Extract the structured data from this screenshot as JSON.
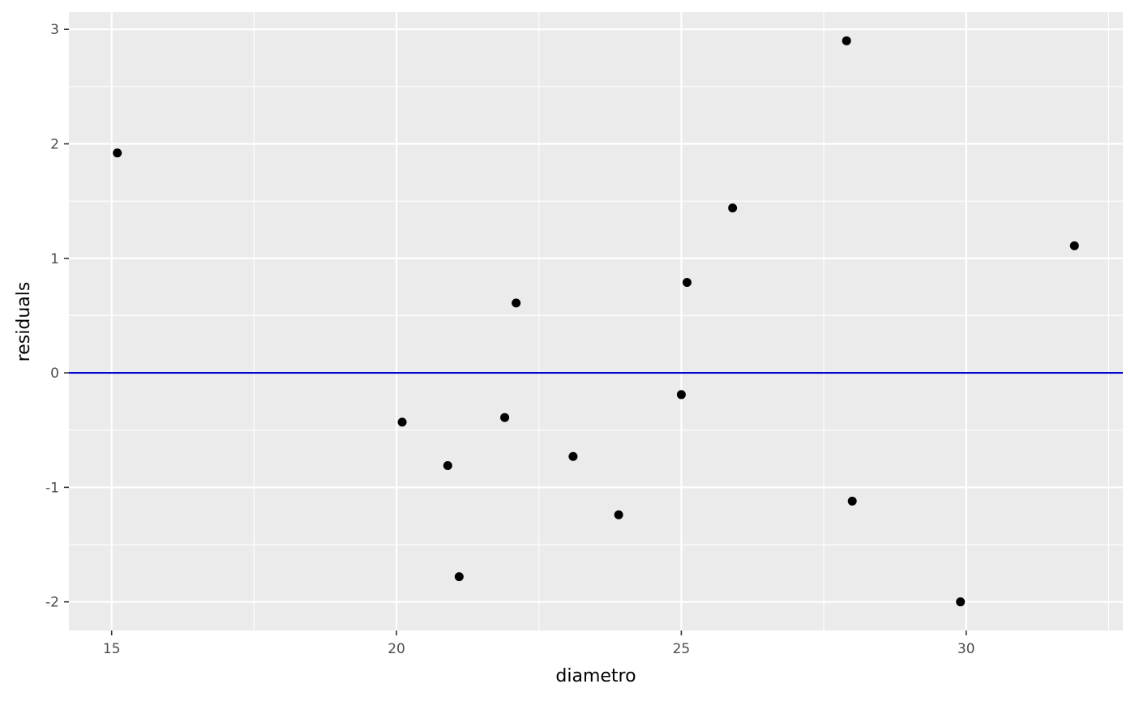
{
  "chart_data": {
    "type": "scatter",
    "xlabel": "diametro",
    "ylabel": "residuals",
    "xlim": [
      14.25,
      32.75
    ],
    "ylim": [
      -2.25,
      3.15
    ],
    "x_ticks": [
      15,
      20,
      25,
      30
    ],
    "x_tick_labels": [
      "15",
      "20",
      "25",
      "30"
    ],
    "y_ticks": [
      -2,
      -1,
      0,
      1,
      2,
      3
    ],
    "y_tick_labels": [
      "-2",
      "-1",
      "0",
      "1",
      "2",
      "3"
    ],
    "grid": true,
    "reference_line": {
      "y": 0,
      "color": "#0000CD"
    },
    "points": [
      {
        "x": 15.1,
        "y": 1.92
      },
      {
        "x": 20.1,
        "y": -0.43
      },
      {
        "x": 20.9,
        "y": -0.81
      },
      {
        "x": 21.1,
        "y": -1.78
      },
      {
        "x": 21.9,
        "y": -0.39
      },
      {
        "x": 22.1,
        "y": 0.61
      },
      {
        "x": 23.1,
        "y": -0.73
      },
      {
        "x": 23.9,
        "y": -1.24
      },
      {
        "x": 25.0,
        "y": -0.19
      },
      {
        "x": 25.1,
        "y": 0.79
      },
      {
        "x": 25.9,
        "y": 1.44
      },
      {
        "x": 27.9,
        "y": 2.9
      },
      {
        "x": 28.0,
        "y": -1.12
      },
      {
        "x": 29.9,
        "y": -2.0
      },
      {
        "x": 31.9,
        "y": 1.11
      }
    ],
    "colors": {
      "panel_bg": "#EBEBEB",
      "grid": "#FFFFFF",
      "point": "#000000",
      "tick": "#333333"
    }
  }
}
